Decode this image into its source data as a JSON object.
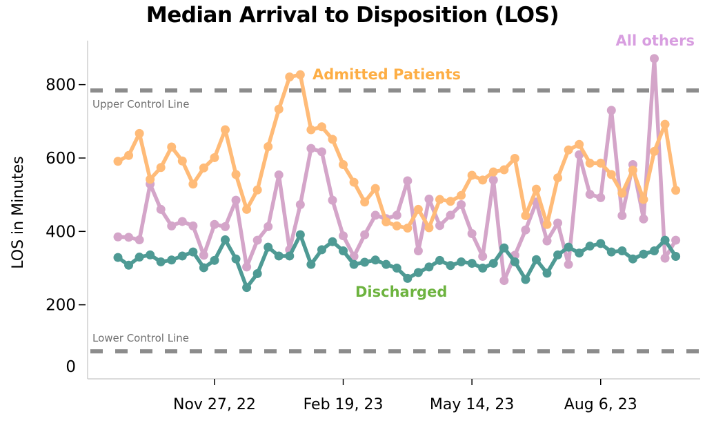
{
  "chart_data": {
    "type": "line",
    "title": "Median Arrival to Disposition (LOS)",
    "xlabel": "",
    "ylabel": "LOS in Minutes",
    "ylim": [
      0,
      920
    ],
    "yticks": [
      0,
      200,
      400,
      600,
      800
    ],
    "xticks": [
      {
        "date": "2022-11-27",
        "label": "Nov 27, 22"
      },
      {
        "date": "2023-02-19",
        "label": "Feb 19, 23"
      },
      {
        "date": "2023-05-14",
        "label": "May 14, 23"
      },
      {
        "date": "2023-08-06",
        "label": "Aug 6, 23"
      }
    ],
    "grid": false,
    "x": [
      "2022-09-25",
      "2022-10-02",
      "2022-10-09",
      "2022-10-16",
      "2022-10-23",
      "2022-10-30",
      "2022-11-06",
      "2022-11-13",
      "2022-11-20",
      "2022-11-27",
      "2022-12-04",
      "2022-12-11",
      "2022-12-18",
      "2022-12-25",
      "2023-01-01",
      "2023-01-08",
      "2023-01-15",
      "2023-01-22",
      "2023-01-29",
      "2023-02-05",
      "2023-02-12",
      "2023-02-19",
      "2023-02-26",
      "2023-03-05",
      "2023-03-12",
      "2023-03-19",
      "2023-03-26",
      "2023-04-02",
      "2023-04-09",
      "2023-04-16",
      "2023-04-23",
      "2023-04-30",
      "2023-05-07",
      "2023-05-14",
      "2023-05-21",
      "2023-05-28",
      "2023-06-04",
      "2023-06-11",
      "2023-06-18",
      "2023-06-25",
      "2023-07-02",
      "2023-07-09",
      "2023-07-16",
      "2023-07-23",
      "2023-07-30",
      "2023-08-06",
      "2023-08-13",
      "2023-08-20",
      "2023-08-27",
      "2023-09-03",
      "2023-09-10",
      "2023-09-17",
      "2023-09-24"
    ],
    "series": [
      {
        "name": "All others",
        "color": "#d4a5c9",
        "label_color": "#d89ee0",
        "values": [
          385,
          384,
          377,
          529,
          460,
          415,
          427,
          415,
          335,
          419,
          413,
          485,
          303,
          376,
          413,
          554,
          350,
          473,
          626,
          617,
          485,
          388,
          332,
          391,
          444,
          435,
          444,
          538,
          347,
          488,
          416,
          444,
          473,
          394,
          332,
          540,
          266,
          335,
          404,
          480,
          374,
          423,
          310,
          609,
          501,
          492,
          730,
          443,
          582,
          434,
          871,
          327,
          376
        ]
      },
      {
        "name": "Admitted Patients",
        "color": "#ffbb78",
        "label_color": "#fdae45",
        "values": [
          591,
          607,
          667,
          542,
          574,
          630,
          592,
          529,
          573,
          601,
          677,
          555,
          460,
          513,
          631,
          733,
          821,
          827,
          677,
          685,
          651,
          582,
          534,
          480,
          517,
          426,
          415,
          409,
          460,
          410,
          487,
          482,
          498,
          553,
          540,
          562,
          568,
          599,
          443,
          515,
          419,
          546,
          622,
          637,
          586,
          586,
          555,
          504,
          567,
          487,
          618,
          692,
          512
        ]
      },
      {
        "name": "Discharged",
        "color": "#4e9a94",
        "label_color": "#6db33f",
        "values": [
          329,
          308,
          330,
          336,
          317,
          322,
          333,
          344,
          301,
          321,
          377,
          325,
          247,
          285,
          357,
          333,
          333,
          391,
          310,
          350,
          372,
          347,
          310,
          316,
          322,
          310,
          300,
          272,
          288,
          303,
          321,
          307,
          317,
          313,
          300,
          313,
          355,
          317,
          269,
          323,
          286,
          336,
          357,
          341,
          360,
          367,
          344,
          347,
          325,
          338,
          347,
          376,
          332
        ]
      }
    ],
    "control_lines": [
      {
        "label": "Upper Control Line",
        "value": 784,
        "color": "#8c8c8c"
      },
      {
        "label": "Lower Control Line",
        "value": 73,
        "color": "#8c8c8c"
      }
    ],
    "legend": "inline-labels"
  }
}
